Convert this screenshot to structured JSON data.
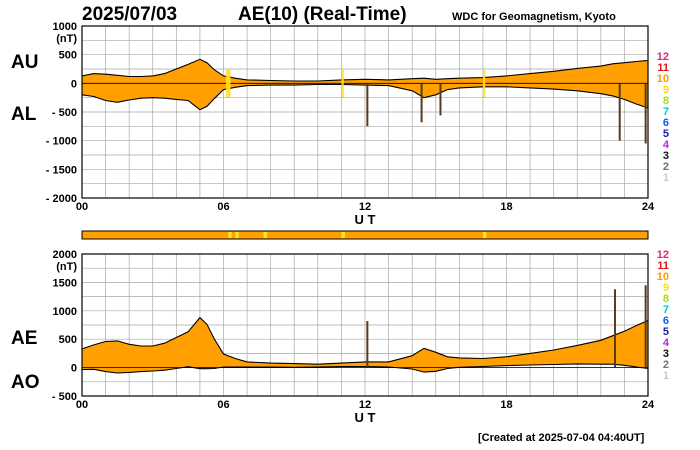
{
  "header": {
    "date": "2025/07/03",
    "title": "AE(10) (Real-Time)",
    "organization": "WDC for Geomagnetism, Kyoto"
  },
  "footer": "[Created at 2025-07-04 04:40UT]",
  "station_count_legend": [
    {
      "label": "12",
      "color": "#e8247a"
    },
    {
      "label": "11",
      "color": "#e0161e"
    },
    {
      "label": "10",
      "color": "#ff9a00"
    },
    {
      "label": "9",
      "color": "#ffe000"
    },
    {
      "label": "8",
      "color": "#a8e000"
    },
    {
      "label": "7",
      "color": "#00c8d8"
    },
    {
      "label": "6",
      "color": "#1656ff"
    },
    {
      "label": "5",
      "color": "#2020a0"
    },
    {
      "label": "4",
      "color": "#c020e0"
    },
    {
      "label": "3",
      "color": "#101010"
    },
    {
      "label": "2",
      "color": "#707070"
    },
    {
      "label": "1",
      "color": "#c8c8c8"
    }
  ],
  "colors": {
    "fill": "#ffa000",
    "edge": "#000000",
    "spike": "#5a3a1a",
    "reduced_stations": "#ffe030",
    "grid": "#a8a8a8"
  },
  "chart_data": [
    {
      "type": "area",
      "panel": "AU/AL",
      "label_upper": "AU",
      "label_lower": "AL",
      "xlabel": "U T",
      "ylabel": "(nT)",
      "xlim": [
        0,
        24
      ],
      "ylim": [
        -2000,
        1000
      ],
      "xticks": [
        "00",
        "06",
        "12",
        "18",
        "24"
      ],
      "yticks": [
        "1000",
        "500",
        "0",
        "- 500",
        "- 1000",
        "- 1500",
        "- 2000"
      ],
      "grid": true,
      "x": [
        0,
        0.5,
        1,
        1.5,
        2,
        2.5,
        3,
        3.5,
        4,
        4.5,
        5,
        5.3,
        5.6,
        6,
        6.5,
        7,
        8,
        9,
        10,
        11,
        12,
        13,
        14,
        14.5,
        15,
        15.5,
        16,
        17,
        18,
        19,
        20,
        21,
        22,
        22.5,
        23,
        23.5,
        24
      ],
      "series": [
        {
          "name": "AU",
          "values": [
            130,
            170,
            160,
            140,
            120,
            120,
            130,
            170,
            250,
            330,
            420,
            360,
            240,
            130,
            90,
            60,
            50,
            40,
            40,
            60,
            70,
            60,
            80,
            90,
            70,
            80,
            90,
            100,
            130,
            170,
            210,
            260,
            300,
            340,
            360,
            380,
            400
          ]
        },
        {
          "name": "AL",
          "values": [
            -200,
            -230,
            -300,
            -330,
            -290,
            -260,
            -250,
            -260,
            -280,
            -300,
            -460,
            -400,
            -270,
            -110,
            -70,
            -40,
            -30,
            -30,
            -20,
            -20,
            -30,
            -40,
            -130,
            -250,
            -200,
            -110,
            -80,
            -60,
            -60,
            -80,
            -100,
            -130,
            -180,
            -220,
            -280,
            -360,
            -430
          ]
        }
      ],
      "spikes_AL": [
        {
          "x": 12.1,
          "value": -750
        },
        {
          "x": 14.4,
          "value": -680
        },
        {
          "x": 15.2,
          "value": -560
        },
        {
          "x": 22.8,
          "value": -1000
        },
        {
          "x": 23.9,
          "value": -1050
        }
      ],
      "reduced_station_intervals": [
        [
          6.1,
          6.3
        ],
        [
          11.0,
          11.1
        ],
        [
          17.0,
          17.1
        ]
      ]
    },
    {
      "type": "area",
      "panel": "AE/AO",
      "label_upper": "AE",
      "label_lower": "AO",
      "xlabel": "U T",
      "ylabel": "(nT)",
      "xlim": [
        0,
        24
      ],
      "ylim": [
        -500,
        2000
      ],
      "xticks": [
        "00",
        "06",
        "12",
        "18",
        "24"
      ],
      "yticks": [
        "2000",
        "1500",
        "1000",
        "500",
        "0",
        "- 500"
      ],
      "grid": true,
      "x": [
        0,
        0.5,
        1,
        1.5,
        2,
        2.5,
        3,
        3.5,
        4,
        4.5,
        5,
        5.3,
        5.6,
        6,
        6.5,
        7,
        8,
        9,
        10,
        11,
        12,
        13,
        14,
        14.5,
        15,
        15.5,
        16,
        17,
        18,
        19,
        20,
        21,
        22,
        22.5,
        23,
        23.5,
        24
      ],
      "series": [
        {
          "name": "AE",
          "values": [
            330,
            400,
            460,
            470,
            410,
            380,
            380,
            430,
            530,
            630,
            880,
            760,
            510,
            240,
            160,
            100,
            80,
            70,
            60,
            80,
            100,
            100,
            210,
            340,
            270,
            190,
            170,
            160,
            190,
            250,
            310,
            390,
            480,
            560,
            640,
            740,
            830
          ]
        },
        {
          "name": "AO",
          "values": [
            -35,
            -30,
            -70,
            -95,
            -85,
            -70,
            -60,
            -45,
            -15,
            15,
            -20,
            -20,
            -15,
            10,
            10,
            10,
            10,
            5,
            10,
            20,
            20,
            10,
            -25,
            -80,
            -65,
            -15,
            5,
            20,
            35,
            45,
            55,
            65,
            60,
            60,
            40,
            10,
            -15
          ]
        }
      ],
      "spikes_AE": [
        {
          "x": 12.1,
          "value": 820
        },
        {
          "x": 22.6,
          "value": 1380
        },
        {
          "x": 23.9,
          "value": 1450
        }
      ],
      "station_bar": {
        "default_color": "#ffa000",
        "highlight_color": "#ffe030",
        "highlight_intervals": [
          [
            6.2,
            6.35
          ],
          [
            6.5,
            6.65
          ],
          [
            7.7,
            7.85
          ],
          [
            11.0,
            11.15
          ],
          [
            17.0,
            17.15
          ]
        ]
      }
    }
  ]
}
